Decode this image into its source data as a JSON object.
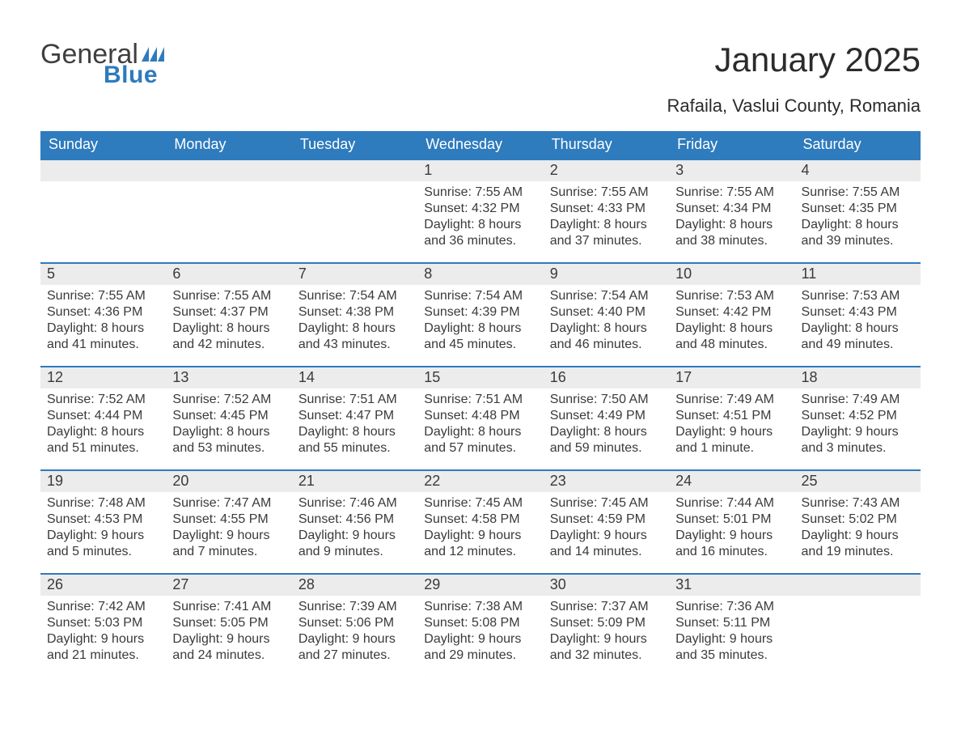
{
  "logo": {
    "word1": "General",
    "word2": "Blue",
    "flag_color": "#2e7bbd"
  },
  "title": "January 2025",
  "location": "Rafaila, Vaslui County, Romania",
  "colors": {
    "header_bg": "#2e7bbd",
    "header_text": "#ffffff",
    "daynum_bg": "#ececec",
    "row_border": "#2e7bbd",
    "text": "#3a3a3a",
    "page_bg": "#ffffff"
  },
  "days_of_week": [
    "Sunday",
    "Monday",
    "Tuesday",
    "Wednesday",
    "Thursday",
    "Friday",
    "Saturday"
  ],
  "weeks": [
    [
      {
        "n": "",
        "sunrise": "",
        "sunset": "",
        "daylight": ""
      },
      {
        "n": "",
        "sunrise": "",
        "sunset": "",
        "daylight": ""
      },
      {
        "n": "",
        "sunrise": "",
        "sunset": "",
        "daylight": ""
      },
      {
        "n": "1",
        "sunrise": "Sunrise: 7:55 AM",
        "sunset": "Sunset: 4:32 PM",
        "daylight": "Daylight: 8 hours and 36 minutes."
      },
      {
        "n": "2",
        "sunrise": "Sunrise: 7:55 AM",
        "sunset": "Sunset: 4:33 PM",
        "daylight": "Daylight: 8 hours and 37 minutes."
      },
      {
        "n": "3",
        "sunrise": "Sunrise: 7:55 AM",
        "sunset": "Sunset: 4:34 PM",
        "daylight": "Daylight: 8 hours and 38 minutes."
      },
      {
        "n": "4",
        "sunrise": "Sunrise: 7:55 AM",
        "sunset": "Sunset: 4:35 PM",
        "daylight": "Daylight: 8 hours and 39 minutes."
      }
    ],
    [
      {
        "n": "5",
        "sunrise": "Sunrise: 7:55 AM",
        "sunset": "Sunset: 4:36 PM",
        "daylight": "Daylight: 8 hours and 41 minutes."
      },
      {
        "n": "6",
        "sunrise": "Sunrise: 7:55 AM",
        "sunset": "Sunset: 4:37 PM",
        "daylight": "Daylight: 8 hours and 42 minutes."
      },
      {
        "n": "7",
        "sunrise": "Sunrise: 7:54 AM",
        "sunset": "Sunset: 4:38 PM",
        "daylight": "Daylight: 8 hours and 43 minutes."
      },
      {
        "n": "8",
        "sunrise": "Sunrise: 7:54 AM",
        "sunset": "Sunset: 4:39 PM",
        "daylight": "Daylight: 8 hours and 45 minutes."
      },
      {
        "n": "9",
        "sunrise": "Sunrise: 7:54 AM",
        "sunset": "Sunset: 4:40 PM",
        "daylight": "Daylight: 8 hours and 46 minutes."
      },
      {
        "n": "10",
        "sunrise": "Sunrise: 7:53 AM",
        "sunset": "Sunset: 4:42 PM",
        "daylight": "Daylight: 8 hours and 48 minutes."
      },
      {
        "n": "11",
        "sunrise": "Sunrise: 7:53 AM",
        "sunset": "Sunset: 4:43 PM",
        "daylight": "Daylight: 8 hours and 49 minutes."
      }
    ],
    [
      {
        "n": "12",
        "sunrise": "Sunrise: 7:52 AM",
        "sunset": "Sunset: 4:44 PM",
        "daylight": "Daylight: 8 hours and 51 minutes."
      },
      {
        "n": "13",
        "sunrise": "Sunrise: 7:52 AM",
        "sunset": "Sunset: 4:45 PM",
        "daylight": "Daylight: 8 hours and 53 minutes."
      },
      {
        "n": "14",
        "sunrise": "Sunrise: 7:51 AM",
        "sunset": "Sunset: 4:47 PM",
        "daylight": "Daylight: 8 hours and 55 minutes."
      },
      {
        "n": "15",
        "sunrise": "Sunrise: 7:51 AM",
        "sunset": "Sunset: 4:48 PM",
        "daylight": "Daylight: 8 hours and 57 minutes."
      },
      {
        "n": "16",
        "sunrise": "Sunrise: 7:50 AM",
        "sunset": "Sunset: 4:49 PM",
        "daylight": "Daylight: 8 hours and 59 minutes."
      },
      {
        "n": "17",
        "sunrise": "Sunrise: 7:49 AM",
        "sunset": "Sunset: 4:51 PM",
        "daylight": "Daylight: 9 hours and 1 minute."
      },
      {
        "n": "18",
        "sunrise": "Sunrise: 7:49 AM",
        "sunset": "Sunset: 4:52 PM",
        "daylight": "Daylight: 9 hours and 3 minutes."
      }
    ],
    [
      {
        "n": "19",
        "sunrise": "Sunrise: 7:48 AM",
        "sunset": "Sunset: 4:53 PM",
        "daylight": "Daylight: 9 hours and 5 minutes."
      },
      {
        "n": "20",
        "sunrise": "Sunrise: 7:47 AM",
        "sunset": "Sunset: 4:55 PM",
        "daylight": "Daylight: 9 hours and 7 minutes."
      },
      {
        "n": "21",
        "sunrise": "Sunrise: 7:46 AM",
        "sunset": "Sunset: 4:56 PM",
        "daylight": "Daylight: 9 hours and 9 minutes."
      },
      {
        "n": "22",
        "sunrise": "Sunrise: 7:45 AM",
        "sunset": "Sunset: 4:58 PM",
        "daylight": "Daylight: 9 hours and 12 minutes."
      },
      {
        "n": "23",
        "sunrise": "Sunrise: 7:45 AM",
        "sunset": "Sunset: 4:59 PM",
        "daylight": "Daylight: 9 hours and 14 minutes."
      },
      {
        "n": "24",
        "sunrise": "Sunrise: 7:44 AM",
        "sunset": "Sunset: 5:01 PM",
        "daylight": "Daylight: 9 hours and 16 minutes."
      },
      {
        "n": "25",
        "sunrise": "Sunrise: 7:43 AM",
        "sunset": "Sunset: 5:02 PM",
        "daylight": "Daylight: 9 hours and 19 minutes."
      }
    ],
    [
      {
        "n": "26",
        "sunrise": "Sunrise: 7:42 AM",
        "sunset": "Sunset: 5:03 PM",
        "daylight": "Daylight: 9 hours and 21 minutes."
      },
      {
        "n": "27",
        "sunrise": "Sunrise: 7:41 AM",
        "sunset": "Sunset: 5:05 PM",
        "daylight": "Daylight: 9 hours and 24 minutes."
      },
      {
        "n": "28",
        "sunrise": "Sunrise: 7:39 AM",
        "sunset": "Sunset: 5:06 PM",
        "daylight": "Daylight: 9 hours and 27 minutes."
      },
      {
        "n": "29",
        "sunrise": "Sunrise: 7:38 AM",
        "sunset": "Sunset: 5:08 PM",
        "daylight": "Daylight: 9 hours and 29 minutes."
      },
      {
        "n": "30",
        "sunrise": "Sunrise: 7:37 AM",
        "sunset": "Sunset: 5:09 PM",
        "daylight": "Daylight: 9 hours and 32 minutes."
      },
      {
        "n": "31",
        "sunrise": "Sunrise: 7:36 AM",
        "sunset": "Sunset: 5:11 PM",
        "daylight": "Daylight: 9 hours and 35 minutes."
      },
      {
        "n": "",
        "sunrise": "",
        "sunset": "",
        "daylight": ""
      }
    ]
  ]
}
